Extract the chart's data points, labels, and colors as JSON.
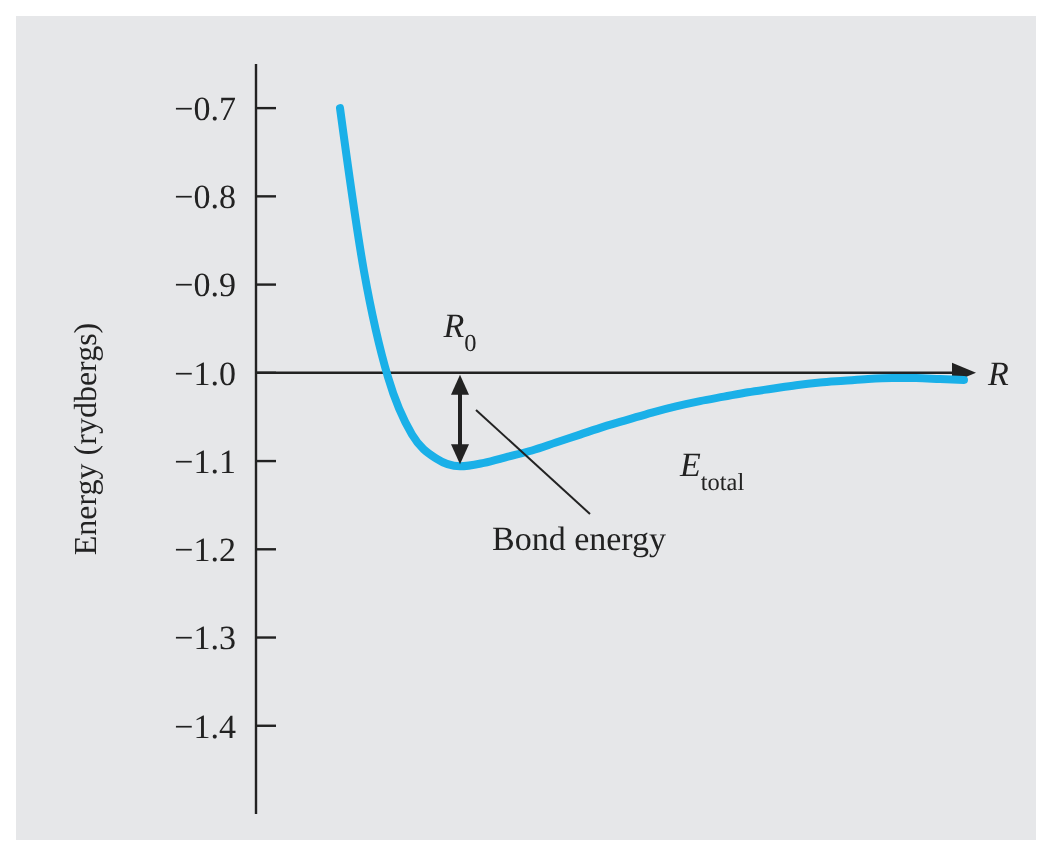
{
  "chart_data": {
    "type": "line",
    "ylabel": "Energy (rydbergs)",
    "xlabel": "R",
    "categories": [
      null,
      null,
      null,
      null,
      null,
      null,
      null,
      null,
      null,
      null,
      null,
      null,
      null,
      null,
      null,
      null,
      null,
      null,
      null,
      null,
      null,
      null,
      null,
      null,
      null,
      null,
      null,
      null,
      null,
      null
    ],
    "series": [
      {
        "color": "#1ab0e8",
        "values": [
          null,
          null,
          null,
          -0.7,
          -0.885,
          -1.005,
          -1.07,
          -1.097,
          -1.106,
          -1.102,
          -1.095,
          -1.088,
          -1.079,
          -1.07,
          -1.061,
          -1.053,
          -1.045,
          -1.038,
          -1.032,
          -1.027,
          -1.022,
          -1.018,
          -1.014,
          -1.011,
          -1.009,
          -1.007,
          -1.006,
          -1.006,
          -1.007,
          -1.008
        ]
      }
    ],
    "ylim": [
      -1.5,
      -0.65
    ],
    "yticks": [
      {
        "value": -0.7,
        "label": "−0.7"
      },
      {
        "value": -0.8,
        "label": "−0.8"
      },
      {
        "value": -0.9,
        "label": "−0.9"
      },
      {
        "value": -1.0,
        "label": "−1.0"
      },
      {
        "value": -1.1,
        "label": "−1.1"
      },
      {
        "value": -1.2,
        "label": "−1.2"
      },
      {
        "value": -1.3,
        "label": "−1.3"
      },
      {
        "value": -1.4,
        "label": "−1.4"
      }
    ],
    "tick_labels": "y",
    "ref_lines": [
      {
        "axis": "y",
        "value": -1.0
      }
    ],
    "annotations": [
      "R$_{0}$",
      "E$_{total}$",
      "Bond energy"
    ],
    "grid": false,
    "marker": "none",
    "line_style": "solid"
  }
}
